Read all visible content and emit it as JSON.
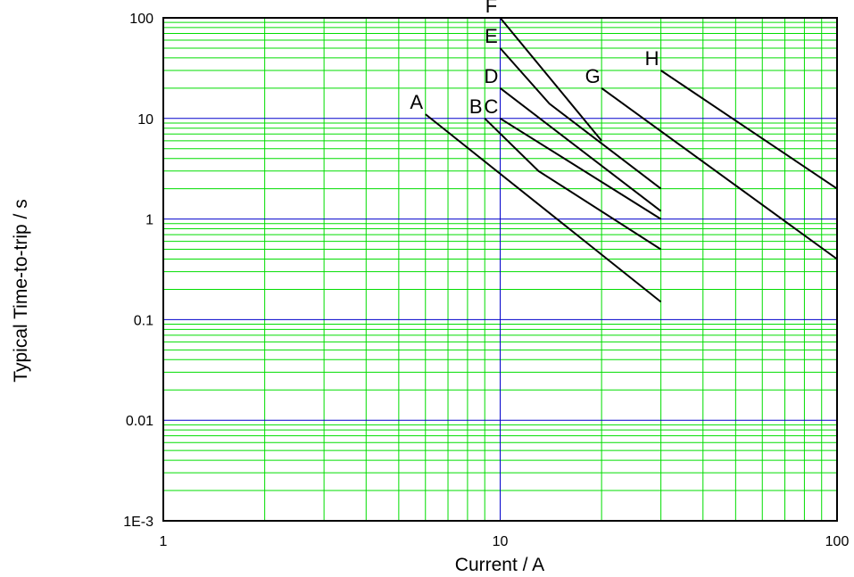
{
  "chart_data": {
    "type": "line",
    "xlabel": "Current / A",
    "ylabel": "Typical Time-to-trip / s",
    "x_scale": "log",
    "y_scale": "log",
    "xlim": [
      1,
      100
    ],
    "ylim": [
      0.001,
      100
    ],
    "x_ticks": [
      {
        "value": 1,
        "label": "1"
      },
      {
        "value": 10,
        "label": "10"
      },
      {
        "value": 100,
        "label": "100"
      }
    ],
    "y_ticks": [
      {
        "value": 0.001,
        "label": "1E-3"
      },
      {
        "value": 0.01,
        "label": "0.01"
      },
      {
        "value": 0.1,
        "label": "0.1"
      },
      {
        "value": 1,
        "label": "1"
      },
      {
        "value": 10,
        "label": "10"
      },
      {
        "value": 100,
        "label": "100"
      }
    ],
    "grid": true,
    "colors": {
      "major_grid": "#0000cc",
      "minor_grid": "#00dd00",
      "series": "#000000"
    },
    "series": [
      {
        "name": "A",
        "points": [
          [
            6,
            11
          ],
          [
            30,
            0.15
          ]
        ]
      },
      {
        "name": "B",
        "points": [
          [
            9,
            10
          ],
          [
            13,
            3
          ],
          [
            30,
            0.5
          ]
        ]
      },
      {
        "name": "C",
        "points": [
          [
            10,
            10
          ],
          [
            30,
            1
          ]
        ]
      },
      {
        "name": "D",
        "points": [
          [
            10,
            20
          ],
          [
            30,
            1.2
          ]
        ]
      },
      {
        "name": "E",
        "points": [
          [
            10,
            50
          ],
          [
            14,
            14
          ],
          [
            30,
            2
          ]
        ]
      },
      {
        "name": "F",
        "points": [
          [
            10,
            100
          ],
          [
            20,
            6
          ]
        ]
      },
      {
        "name": "G",
        "points": [
          [
            20,
            20
          ],
          [
            100,
            0.4
          ]
        ]
      },
      {
        "name": "H",
        "points": [
          [
            30,
            30
          ],
          [
            100,
            2
          ]
        ]
      }
    ]
  }
}
